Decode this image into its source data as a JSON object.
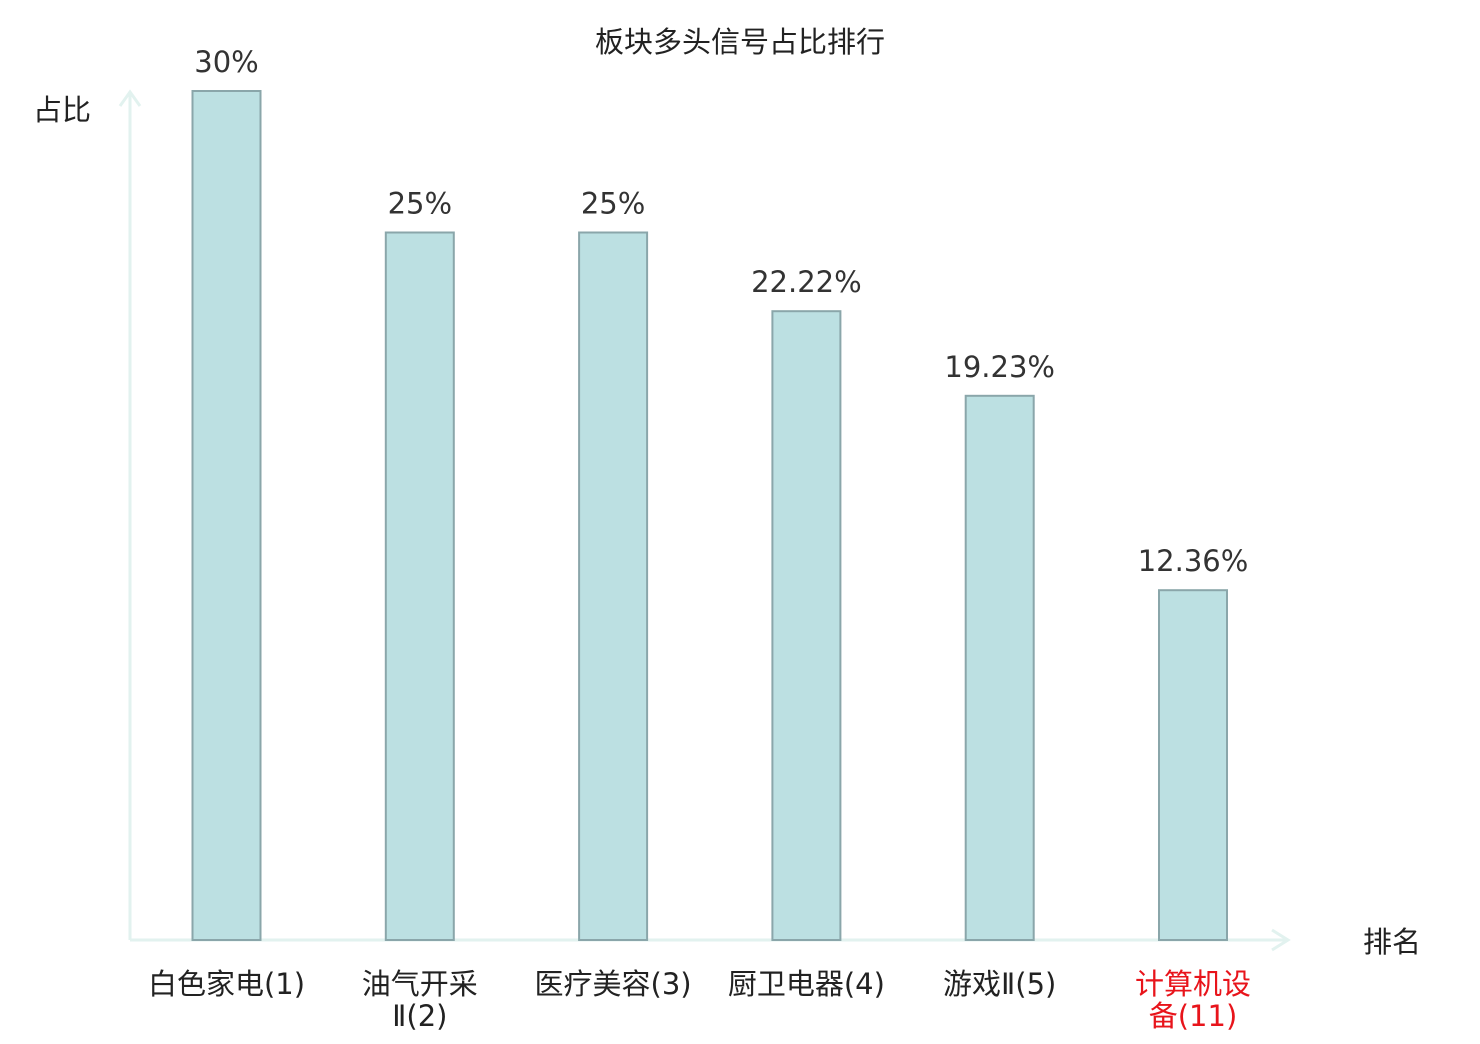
{
  "chart_data": {
    "type": "bar",
    "title": "板块多头信号占比排行",
    "ylabel": "占比",
    "xlabel": "排名",
    "categories": [
      [
        "白色家电(1)"
      ],
      [
        "油气开采",
        "Ⅱ(2)"
      ],
      [
        "医疗美容(3)"
      ],
      [
        "厨卫电器(4)"
      ],
      [
        "游戏Ⅱ(5)"
      ],
      [
        "计算机设",
        "备(11)"
      ]
    ],
    "values": [
      30,
      25,
      25,
      22.22,
      19.23,
      12.36
    ],
    "value_labels": [
      "30%",
      "25%",
      "25%",
      "22.22%",
      "19.23%",
      "12.36%"
    ],
    "highlight_index": 5,
    "ylim": [
      0,
      30
    ],
    "grid": false,
    "legend": "none",
    "colors": {
      "bar_fill": "#bce0e2",
      "bar_stroke": "#8aa6aa",
      "axis": "#e2f2ef",
      "label_text": "#333333",
      "category_text": "#222222",
      "highlight_text": "#e8141b"
    }
  }
}
